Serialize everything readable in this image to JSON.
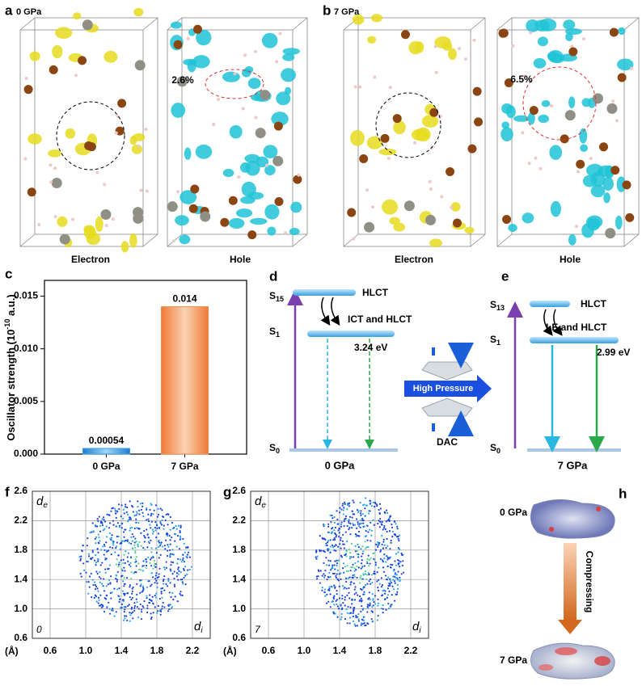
{
  "panel_a": {
    "letter": "a",
    "pressure": "0 GPa",
    "electron": "Electron",
    "hole": "Hole",
    "overlap": "2.6%"
  },
  "panel_b": {
    "letter": "b",
    "pressure": "7 GPa",
    "electron": "Electron",
    "hole": "Hole",
    "overlap": "6.5%"
  },
  "chart_data": {
    "type": "bar",
    "letter": "c",
    "ylabel": {
      "text": "Oscillator strength (10",
      "sup": "-10",
      "end": " a.u.)"
    },
    "categories": [
      "0 GPa",
      "7 GPa"
    ],
    "values": [
      0.00054,
      0.014
    ],
    "colors": [
      "#3d9be0",
      "#f28b4f"
    ],
    "ylim": [
      0,
      0.0165
    ],
    "yticks": [
      {
        "value": 0,
        "label": "0.000"
      },
      0.005,
      {
        "value": 0.01,
        "label": "0.010"
      },
      0.015
    ]
  },
  "panel_d": {
    "letter": "d",
    "upper_state": {
      "base": "S",
      "sub": "15"
    },
    "upper_label": "HLCT",
    "transfer": "ICT and HLCT",
    "s1": {
      "base": "S",
      "sub": "1"
    },
    "energy": "3.24 eV",
    "s0": {
      "base": "S",
      "sub": "0"
    },
    "pressure": "0 GPa"
  },
  "dac": {
    "arrow": "High Pressure",
    "cell": "DAC"
  },
  "panel_e": {
    "letter": "e",
    "upper_state": {
      "base": "S",
      "sub": "13"
    },
    "upper_label": "HLCT",
    "transfer": "LE and HLCT",
    "s1": {
      "base": "S",
      "sub": "1"
    },
    "energy": "2.99 eV",
    "s0": {
      "base": "S",
      "sub": "0"
    },
    "pressure": "7 GPa"
  },
  "fingerprints": [
    {
      "letter": "f",
      "index": "0",
      "unit": "(Å)",
      "de": {
        "base": "d",
        "sub": "e"
      },
      "di": {
        "base": "d",
        "sub": "i"
      },
      "xlim": [
        0.4,
        2.4
      ],
      "ylim": [
        0.6,
        2.6
      ],
      "xticks": [
        0.6,
        {
          "value": 1,
          "label": "1.0"
        },
        1.4,
        1.8,
        2.2
      ],
      "yticks": [
        0.6,
        {
          "value": 1,
          "label": "1.0"
        },
        1.4,
        1.8,
        2.2,
        2.6
      ]
    },
    {
      "letter": "g",
      "index": "7",
      "unit": "(Å)",
      "de": {
        "base": "d",
        "sub": "e"
      },
      "di": {
        "base": "d",
        "sub": "i"
      },
      "xlim": [
        0.4,
        2.4
      ],
      "ylim": [
        0.6,
        2.6
      ],
      "xticks": [
        0.6,
        {
          "value": 1,
          "label": "1.0"
        },
        1.4,
        1.8,
        2.2
      ],
      "yticks": [
        0.6,
        {
          "value": 1,
          "label": "1.0"
        },
        1.4,
        1.8,
        2.2,
        2.6
      ]
    }
  ],
  "panel_h": {
    "letter": "h",
    "top": "0 GPa",
    "arrow": "Compressing",
    "bottom": "7 GPa"
  }
}
